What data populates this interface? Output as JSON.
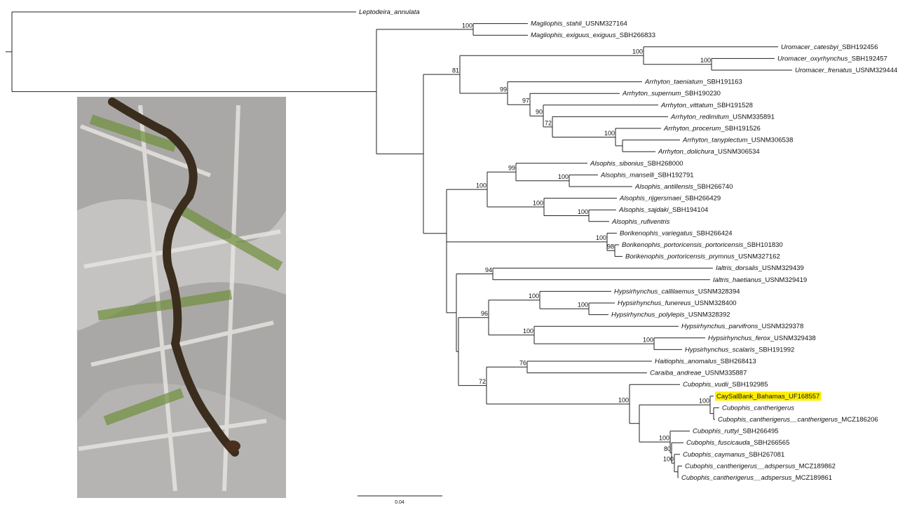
{
  "tree": {
    "taxa": [
      {
        "name": "Leptodeira_annulata"
      },
      {
        "name": "Magliophis_stahli",
        "specimen": "_USNM327164"
      },
      {
        "name": "Magliophis_exiguus_exiguus",
        "specimen": "_SBH266833"
      },
      {
        "name": "Uromacer_catesbyi",
        "specimen": "_SBH192456"
      },
      {
        "name": "Uromacer_oxyrhynchus",
        "specimen": "_SBH192457"
      },
      {
        "name": "Uromacer_frenatus",
        "specimen": "_USNM329444"
      },
      {
        "name": "Arrhyton_taeniatum",
        "specimen": "_SBH191163"
      },
      {
        "name": "Arrhyton_supernum",
        "specimen": "_SBH190230"
      },
      {
        "name": "Arrhyton_vittatum",
        "specimen": "_SBH191528"
      },
      {
        "name": "Arrhyton_redimitum",
        "specimen": "_USNM335891"
      },
      {
        "name": "Arrhyton_procerum",
        "specimen": "_SBH191526"
      },
      {
        "name": "Arrhyton_tanyplectum",
        "specimen": "_USNM306538"
      },
      {
        "name": "Arrhyton_dolichura",
        "specimen": "_USNM306534"
      },
      {
        "name": "Alsophis_sibonius",
        "specimen": "_SBH268000"
      },
      {
        "name": "Alsophis_manselli",
        "specimen": "_SBH192791"
      },
      {
        "name": "Alsophis_antillensis",
        "specimen": "_SBH266740"
      },
      {
        "name": "Alsophis_rijgersmaei",
        "specimen": "_SBH266429"
      },
      {
        "name": "Alsophis_sajdaki",
        "specimen": "_SBH194104"
      },
      {
        "name": "Alsophis_rufiventris"
      },
      {
        "name": "Borikenophis_variegatus",
        "specimen": "_SBH266424"
      },
      {
        "name": "Borikenophis_portoricensis_portoricensis",
        "specimen": "_SBH101830"
      },
      {
        "name": "Borikenophis_portoricensis_prymnus",
        "specimen": "_USNM327162"
      },
      {
        "name": "Ialtris_dorsalis",
        "specimen": "_USNM329439"
      },
      {
        "name": "Ialtris_haetianus",
        "specimen": "_USNM329419"
      },
      {
        "name": "Hypsirhynchus_callilaemus",
        "specimen": "_USNM328394"
      },
      {
        "name": "Hypsirhynchus_funereus",
        "specimen": "_USNM328400"
      },
      {
        "name": "Hypsirhynchus_polylepis",
        "specimen": "_USNM328392"
      },
      {
        "name": "Hypsirhynchus_parvifrons",
        "specimen": "_USNM329378"
      },
      {
        "name": "Hypsirhynchus_ferox",
        "specimen": "_USNM329438"
      },
      {
        "name": "Hypsirhynchus_scalaris",
        "specimen": "_SBH191992"
      },
      {
        "name": "Haitiophis_anomalus",
        "specimen": "_SBH268413"
      },
      {
        "name": "Caraiba_andreae",
        "specimen": "_USNM335887"
      },
      {
        "name": "Cubophis_vudii",
        "specimen": "_SBH192985"
      },
      {
        "name": "CaySalBank_Bahamas_UF168557",
        "italic": false,
        "highlight": "#ffee00"
      },
      {
        "name": "Cubophis_cantherigerus"
      },
      {
        "name": "Cubophis_cantherigerus__cantherigerus",
        "specimen": "_MCZ186206"
      },
      {
        "name": "Cubophis_ruttyi",
        "specimen": "_SBH266495"
      },
      {
        "name": "Cubophis_fuscicauda",
        "specimen": "_SBH266565"
      },
      {
        "name": "Cubophis_caymanus",
        "specimen": "_SBH267081"
      },
      {
        "name": "Cubophis_cantherigerus__adspersus",
        "specimen": "_MCZ189862"
      },
      {
        "name": "Cubophis_cantherigerus__adspersus",
        "specimen": "_MCZ189861"
      }
    ],
    "support": [
      100,
      81,
      100,
      100,
      99,
      97,
      90,
      72,
      100,
      100,
      99,
      100,
      100,
      100,
      100,
      98,
      94,
      96,
      100,
      100,
      100,
      100,
      72,
      76,
      100,
      100,
      100,
      80,
      100
    ],
    "scale_bar": "0.04"
  }
}
